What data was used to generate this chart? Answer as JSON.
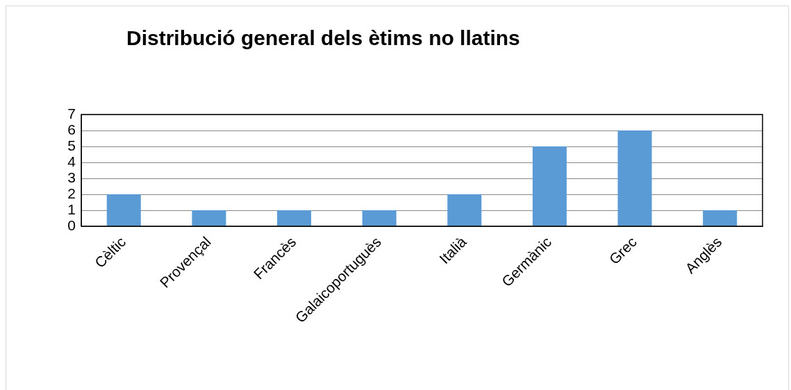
{
  "chart_data": {
    "type": "bar",
    "title": "Distribució general dels ètims no llatins",
    "categories": [
      "Cèltic",
      "Provençal",
      "Francès",
      "Galaicoportuguès",
      "Italià",
      "Germànic",
      "Grec",
      "Anglès"
    ],
    "values": [
      2,
      1,
      1,
      1,
      2,
      5,
      6,
      1
    ],
    "color": "#5b9bd5",
    "ylim": [
      0,
      7
    ],
    "yticks": [
      0,
      1,
      2,
      3,
      4,
      5,
      6,
      7
    ],
    "grid": "y"
  }
}
